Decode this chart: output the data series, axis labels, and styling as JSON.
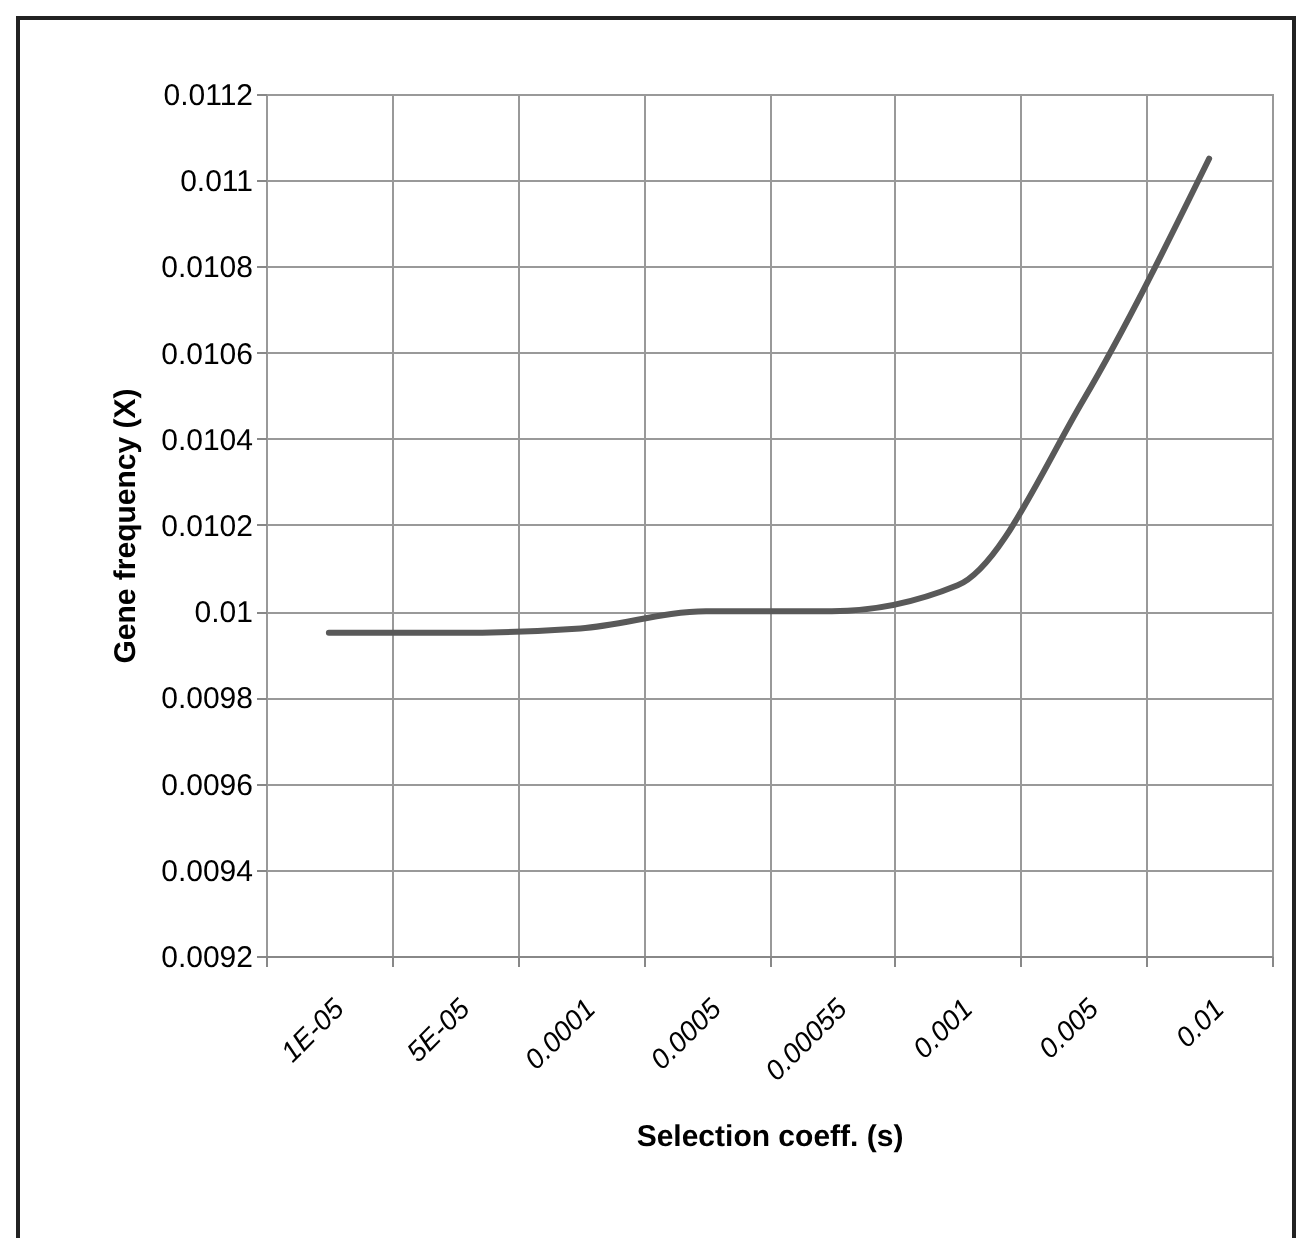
{
  "chart_data": {
    "type": "line",
    "xlabel": "Selection coeff. (s)",
    "ylabel": "Gene frequency (X)",
    "categories": [
      "1E-05",
      "5E-05",
      "0.0001",
      "0.0005",
      "0.00055",
      "0.001",
      "0.005",
      "0.01"
    ],
    "series": [
      {
        "color": "#595959",
        "values": [
          0.00995,
          0.00995,
          0.00996,
          0.01,
          0.01,
          0.01006,
          0.01049,
          0.01105
        ]
      }
    ],
    "ylim": [
      0.0092,
      0.0112
    ],
    "yticks": [
      0.0092,
      0.0094,
      0.0096,
      0.0098,
      0.01,
      0.0102,
      0.0104,
      0.0106,
      0.0108,
      0.011,
      0.0112
    ],
    "grid": true,
    "legend": false,
    "marker": "none",
    "line_style": "solid"
  }
}
